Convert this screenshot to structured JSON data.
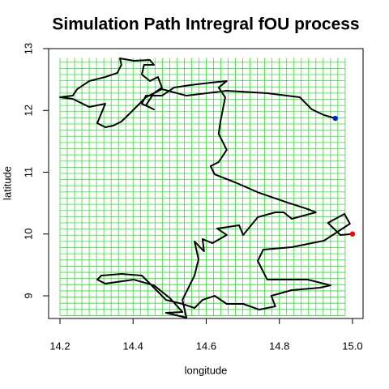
{
  "chart_data": {
    "type": "line",
    "title": "Simulation Path Intregral fOU process",
    "x_label": "longitude",
    "y_label": "latitude",
    "xlim": [
      14.169,
      15.029
    ],
    "ylim": [
      8.633,
      13.0
    ],
    "xticks": [
      14.2,
      14.4,
      14.6,
      14.8,
      {
        "value": 15,
        "label": "15.0"
      }
    ],
    "yticks": [
      9,
      10,
      11,
      12,
      13
    ],
    "grid": {
      "color": "#33dd33",
      "xlim": [
        14.2,
        14.98
      ],
      "ylim": [
        8.68,
        12.85
      ],
      "xstep": 0.02,
      "ystep": 0.1
    },
    "series": [
      {
        "color": "#000000",
        "mode": "line",
        "x": [
          15.0,
          14.967,
          14.933,
          14.978,
          14.993,
          14.922,
          14.834,
          14.756,
          14.741,
          14.767,
          14.878,
          14.94,
          14.911,
          14.834,
          14.778,
          14.789,
          14.745,
          14.701,
          14.656,
          14.623,
          14.59,
          14.568,
          14.535,
          14.49,
          14.446,
          14.424,
          14.368,
          14.313,
          14.302,
          14.324,
          14.402,
          14.457,
          14.501,
          14.535,
          14.49,
          14.546,
          14.535,
          14.568,
          14.579,
          14.568,
          14.594,
          14.59,
          14.617,
          14.656,
          14.63,
          14.69,
          14.701,
          14.741,
          14.789,
          14.812,
          14.834,
          14.9,
          14.878,
          14.823,
          14.745,
          14.679,
          14.623,
          14.612,
          14.634,
          14.656,
          14.634,
          14.639,
          14.652,
          14.634,
          14.656,
          14.612,
          14.557,
          14.512,
          14.479,
          14.435,
          14.424,
          14.457,
          14.435,
          14.457,
          14.479,
          14.468,
          14.446,
          14.424,
          14.43,
          14.457,
          14.446,
          14.402,
          14.364,
          14.368,
          14.357,
          14.324,
          14.28,
          14.247,
          14.235,
          14.2,
          14.235,
          14.28,
          14.324,
          14.313,
          14.302,
          14.324,
          14.346,
          14.368,
          14.391,
          14.413,
          14.435,
          14.479,
          14.546,
          14.656,
          14.767,
          14.856,
          14.889,
          14.922,
          14.953
        ],
        "values": [
          10.0,
          9.984,
          10.18,
          10.325,
          10.167,
          9.892,
          9.787,
          9.748,
          9.564,
          9.262,
          9.262,
          9.17,
          9.131,
          9.092,
          9.0,
          8.829,
          8.777,
          8.869,
          8.869,
          9.0,
          8.934,
          8.803,
          8.869,
          8.934,
          9.197,
          9.328,
          9.354,
          9.328,
          9.262,
          9.197,
          9.262,
          9.17,
          8.961,
          8.738,
          8.725,
          8.646,
          8.934,
          9.328,
          9.59,
          9.879,
          9.721,
          9.918,
          9.852,
          9.984,
          10.089,
          10.141,
          9.984,
          10.272,
          10.351,
          10.351,
          10.246,
          10.351,
          10.403,
          10.508,
          10.666,
          10.836,
          10.967,
          11.098,
          11.164,
          11.361,
          11.623,
          11.82,
          12.213,
          12.37,
          12.475,
          12.449,
          12.41,
          12.37,
          12.239,
          12.239,
          12.108,
          12.016,
          12.082,
          12.279,
          12.37,
          12.541,
          12.475,
          12.58,
          12.738,
          12.738,
          12.816,
          12.803,
          12.843,
          12.738,
          12.607,
          12.541,
          12.475,
          12.344,
          12.239,
          12.213,
          12.187,
          12.056,
          12.108,
          11.951,
          11.793,
          11.728,
          11.754,
          11.82,
          11.951,
          12.082,
          12.213,
          12.344,
          12.239,
          12.318,
          12.279,
          12.213,
          12.016,
          11.925,
          11.872
        ]
      },
      {
        "color": "#ff0000",
        "mode": "point",
        "x": [
          15.0
        ],
        "values": [
          10.0
        ]
      },
      {
        "color": "#0022cc",
        "mode": "point",
        "x": [
          14.953
        ],
        "values": [
          11.872
        ]
      }
    ]
  }
}
